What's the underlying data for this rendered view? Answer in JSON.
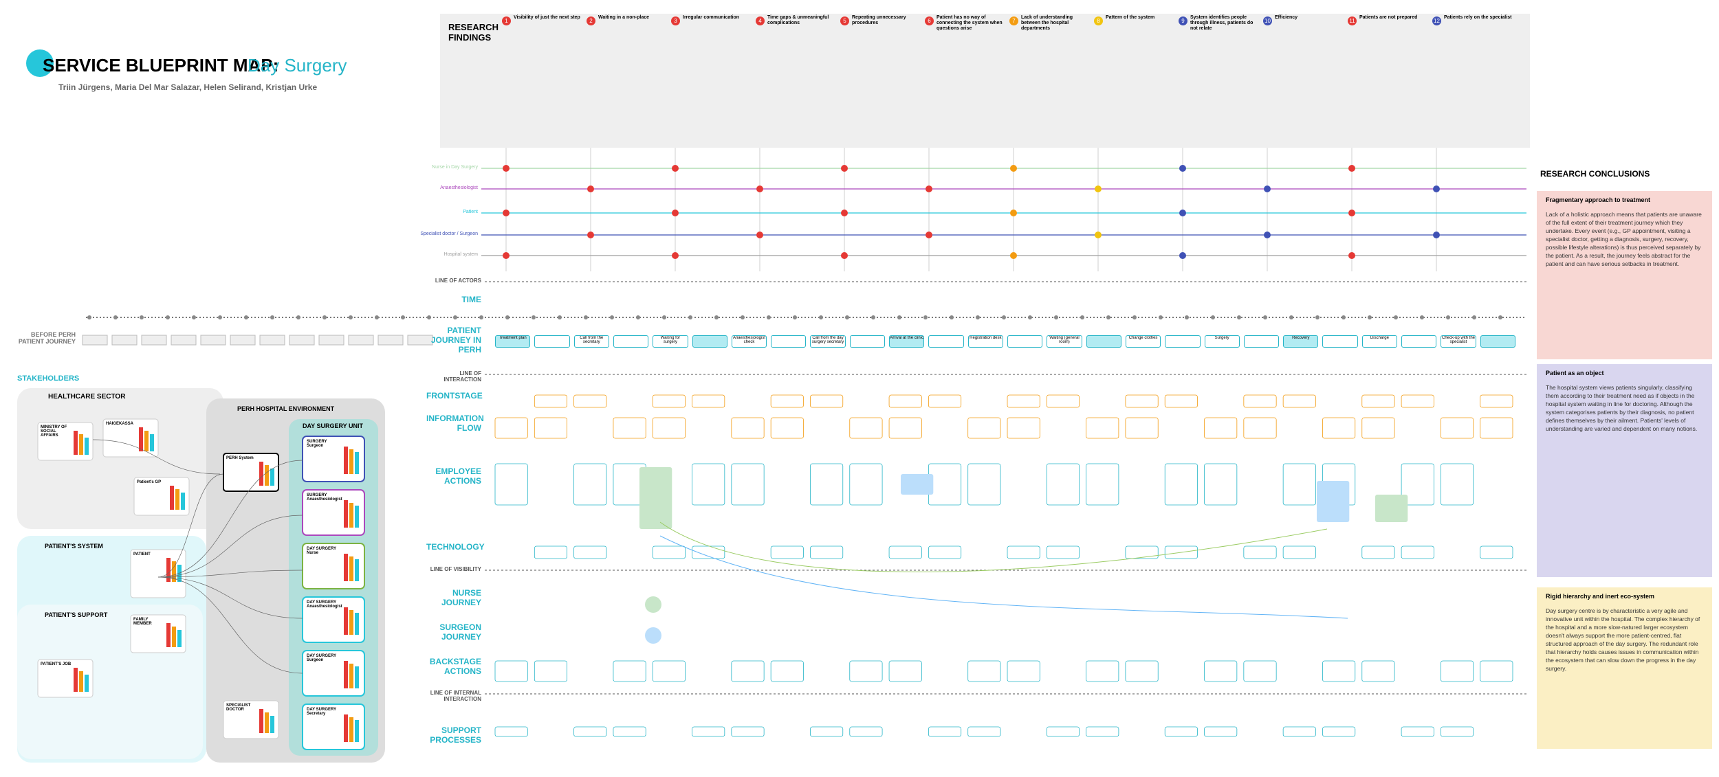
{
  "header": {
    "title": "SERVICE BLUEPRINT MAP:",
    "subtitle": "Day Surgery",
    "authors": "Triin Jürgens, Maria Del Mar Salazar, Helen Selirand, Kristjan Urke"
  },
  "findings": {
    "heading": "RESEARCH FINDINGS",
    "items": [
      {
        "number": "1",
        "title": "Visibility of just the next step",
        "color": "#e53935"
      },
      {
        "number": "2",
        "title": "Waiting in a non-place",
        "color": "#e53935"
      },
      {
        "number": "3",
        "title": "Irregular communication",
        "color": "#e53935"
      },
      {
        "number": "4",
        "title": "Time gaps & unmeaningful complications",
        "color": "#e53935"
      },
      {
        "number": "5",
        "title": "Repeating unnecessary procedures",
        "color": "#e53935"
      },
      {
        "number": "6",
        "title": "Patient has no way of connecting the system when questions arise",
        "color": "#e53935"
      },
      {
        "number": "7",
        "title": "Lack of understanding between the hospital departments",
        "color": "#f39c12"
      },
      {
        "number": "8",
        "title": "Pattern of the system",
        "color": "#f1c40f"
      },
      {
        "number": "9",
        "title": "System identifies people through illness, patients do not relate",
        "color": "#3f51b5"
      },
      {
        "number": "10",
        "title": "Efficiency",
        "color": "#3f51b5"
      },
      {
        "number": "11",
        "title": "Patients are not prepared",
        "color": "#e53935"
      },
      {
        "number": "12",
        "title": "Patients rely on the specialist",
        "color": "#3f51b5"
      }
    ]
  },
  "lanes": [
    {
      "name": "Nurse in Day Surgery",
      "color": "#a5d6a7"
    },
    {
      "name": "Anaesthesiologist",
      "color": "#ab47bc"
    },
    {
      "name": "Patient",
      "color": "#26c6da"
    },
    {
      "name": "Specialist doctor / Surgeon",
      "color": "#3f51b5"
    },
    {
      "name": "Hospital system",
      "color": "#9e9e9e"
    }
  ],
  "rows": {
    "line_of_actors": "LINE OF ACTORS",
    "time": "TIME",
    "before": "BEFORE PERH PATIENT JOURNEY",
    "journey": "PATIENT JOURNEY IN PERH",
    "line_of_interaction": "LINE OF INTERACTION",
    "frontstage": "FRONTSTAGE",
    "information_flow": "INFORMATION FLOW",
    "employee_actions": "EMPLOYEE ACTIONS",
    "technology": "TECHNOLOGY",
    "line_of_visibility": "LINE OF VISIBILITY",
    "nurse_journey": "NURSE JOURNEY",
    "surgeon_journey": "SURGEON JOURNEY",
    "backstage": "BACKSTAGE ACTIONS",
    "line_of_internal": "LINE OF INTERNAL INTERACTION",
    "support": "SUPPORT PROCESSES"
  },
  "journey_steps": [
    "Treatment plan",
    "Call from the secretary",
    "Waiting for surgery",
    "Anaesthesiologist check",
    "Call from the day surgery secretary",
    "Arrival at the clinic",
    "Registration desk",
    "Waiting (general room)",
    "Change clothes",
    "Surgery",
    "Recovery",
    "Discharge",
    "Check-up with the specialist"
  ],
  "stakeholders": {
    "heading": "STAKEHOLDERS",
    "healthcare": "HEALTHCARE SECTOR",
    "perh": "PERH HOSPITAL ENVIRONMENT",
    "unit": "DAY SURGERY UNIT",
    "patient_system": "PATIENT'S SYSTEM",
    "patient_support": "PATIENT'S SUPPORT",
    "cards": [
      "MINISTRY OF SOCIAL AFFAIRS",
      "HAIGEKASSA",
      "Patient's GP",
      "PATIENT",
      "FAMILY MEMBER",
      "PATIENT'S JOB",
      "PERH System",
      "SPECIALIST DOCTOR"
    ],
    "unit_cards": [
      "SURGERY Surgeon",
      "SURGERY Anaesthesiologist",
      "DAY SURGERY Nurse",
      "DAY SURGERY Anaesthesiologist",
      "DAY SURGERY Surgeon",
      "DAY SURGERY Secretary"
    ]
  },
  "conclusions": {
    "heading": "RESEARCH CONCLUSIONS",
    "items": [
      {
        "title": "Fragmentary approach to treatment",
        "color": "#f8d7d3",
        "text": "Lack of a holistic approach means that patients are unaware of the full extent of their treatment journey which they undertake. Every event (e.g., GP appointment, visiting a specialist doctor, getting a diagnosis, surgery, recovery, possible lifestyle alterations) is thus perceived separately by the patient. As a result, the journey feels abstract for the patient and can have serious setbacks in treatment."
      },
      {
        "title": "Patient as an object",
        "color": "#d9d6ef",
        "text": "The hospital system views patients singularly, classifying them according to their treatment need as if objects in the hospital system waiting in line for doctoring. Although the system categorises patients by their diagnosis, no patient defines themselves by their ailment. Patients' levels of understanding are varied and dependent on many notions."
      },
      {
        "title": "Rigid hierarchy and inert eco-system",
        "color": "#fbefc4",
        "text": "Day surgery centre is by characteristic a very agile and innovative unit within the hospital. The complex hierarchy of the hospital and a more slow-natured larger ecosystem doesn't always support the more patient-centred, flat structured approach of the day surgery. The redundant role that hierarchy holds causes issues in communication within the ecosystem that can slow down the progress in the day surgery."
      }
    ]
  }
}
